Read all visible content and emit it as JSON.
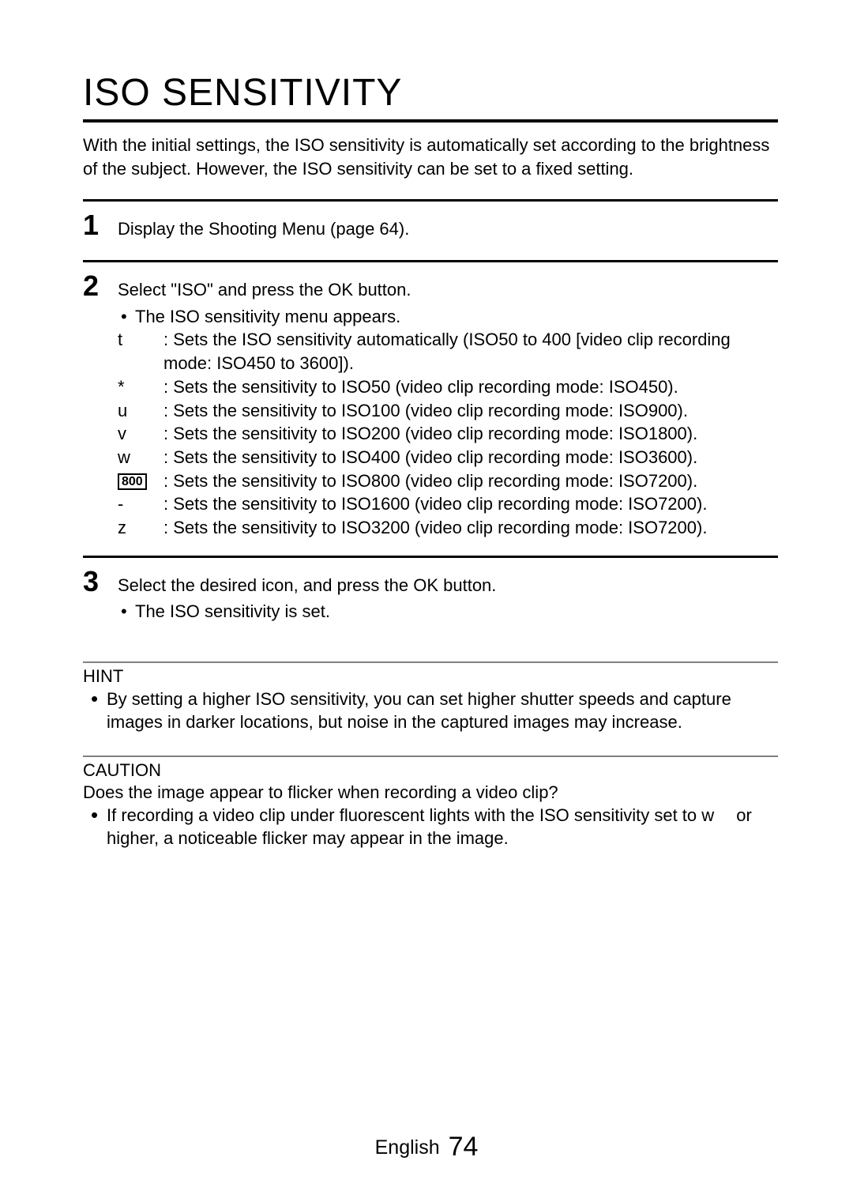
{
  "title": "ISO SENSITIVITY",
  "intro": "With the initial settings, the ISO sensitivity is automatically set according to the brightness of the subject. However, the ISO sensitivity can be set to a fixed setting.",
  "steps": [
    {
      "num": "1",
      "head": "Display the Shooting Menu (page 64).",
      "bullets": [],
      "iso_rows": []
    },
    {
      "num": "2",
      "head": "Select \"ISO\" and press the OK button.",
      "bullets": [
        "The ISO sensitivity menu appears."
      ],
      "iso_rows": [
        {
          "sym": "t",
          "box": false,
          "text": ": Sets the ISO sensitivity automatically (ISO50 to 400 [video clip recording mode: ISO450 to 3600])."
        },
        {
          "sym": "*",
          "box": false,
          "text": ": Sets the sensitivity to ISO50 (video clip recording mode: ISO450)."
        },
        {
          "sym": "u",
          "box": false,
          "text": ": Sets the sensitivity to ISO100 (video clip recording mode: ISO900)."
        },
        {
          "sym": "v",
          "box": false,
          "text": ": Sets the sensitivity to ISO200 (video clip recording mode: ISO1800)."
        },
        {
          "sym": "w",
          "box": false,
          "text": ": Sets the sensitivity to ISO400 (video clip recording mode: ISO3600)."
        },
        {
          "sym": "800",
          "box": true,
          "text": ": Sets the sensitivity to ISO800 (video clip recording mode: ISO7200)."
        },
        {
          "sym": "-",
          "box": false,
          "text": ": Sets the sensitivity to ISO1600 (video clip recording mode: ISO7200)."
        },
        {
          "sym": "z",
          "box": false,
          "text": ": Sets the sensitivity to ISO3200 (video clip recording mode: ISO7200)."
        }
      ]
    },
    {
      "num": "3",
      "head": "Select the desired icon, and press the OK button.",
      "bullets": [
        "The ISO sensitivity is set."
      ],
      "iso_rows": []
    }
  ],
  "hint": {
    "title": "HINT",
    "body": "By setting a higher ISO sensitivity, you can set higher shutter speeds and capture images in darker locations, but noise in the captured images may increase."
  },
  "caution": {
    "title": "CAUTION",
    "sub": "Does the image appear to flicker when recording a video clip?",
    "body": "If recording a video clip under fluorescent lights with the ISO sensitivity set to w  or higher, a noticeable flicker may appear in the image."
  },
  "footer": {
    "lang": "English",
    "page": "74"
  }
}
